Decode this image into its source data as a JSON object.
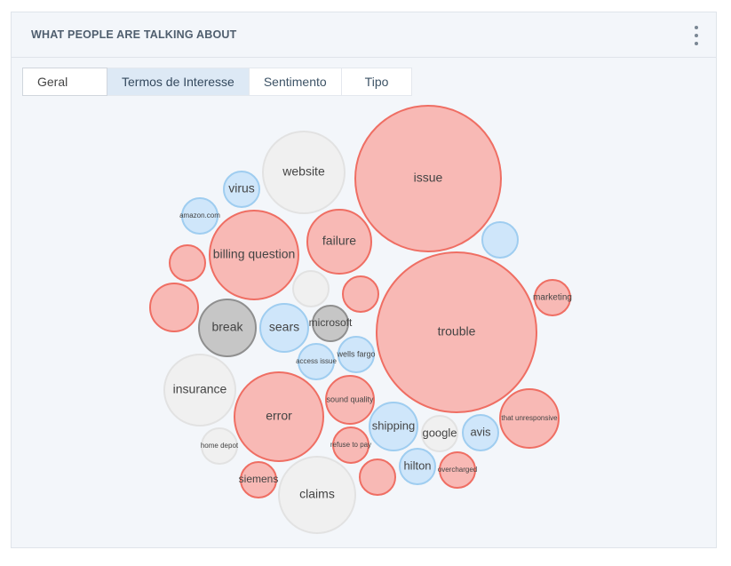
{
  "panel": {
    "title": "WHAT PEOPLE ARE TALKING ABOUT",
    "menu_icon": "vertical-ellipsis-icon"
  },
  "tabs": [
    {
      "label": "Geral",
      "active": false
    },
    {
      "label": "Termos de Interesse",
      "active": true
    },
    {
      "label": "Sentimento",
      "active": false
    },
    {
      "label": "Tipo",
      "active": false
    }
  ],
  "colors": {
    "red_fill": "#f8b9b5",
    "red_stroke": "#ef6e63",
    "blue_fill": "#cfe6fa",
    "blue_stroke": "#9fcdf0",
    "gray_fill": "#f0f0f0",
    "gray_stroke": "#e2e2e2",
    "dark_fill": "#c6c6c6",
    "dark_stroke": "#8f8f8f"
  },
  "bubbles": [
    {
      "label": "issue",
      "group": "red"
    },
    {
      "label": "trouble",
      "group": "red"
    },
    {
      "label": "website",
      "group": "gray"
    },
    {
      "label": "virus",
      "group": "blue"
    },
    {
      "label": "amazon.com",
      "group": "blue"
    },
    {
      "label": "billing question",
      "group": "red"
    },
    {
      "label": "failure",
      "group": "red"
    },
    {
      "label": "",
      "group": "blue"
    },
    {
      "label": "",
      "group": "red"
    },
    {
      "label": "",
      "group": "gray"
    },
    {
      "label": "",
      "group": "red"
    },
    {
      "label": "marketing",
      "group": "red"
    },
    {
      "label": "",
      "group": "red"
    },
    {
      "label": "break",
      "group": "dark"
    },
    {
      "label": "sears",
      "group": "blue"
    },
    {
      "label": "microsoft",
      "group": "dark"
    },
    {
      "label": "wells fargo",
      "group": "blue"
    },
    {
      "label": "access issue",
      "group": "blue"
    },
    {
      "label": "insurance",
      "group": "gray"
    },
    {
      "label": "error",
      "group": "red"
    },
    {
      "label": "sound quality",
      "group": "red"
    },
    {
      "label": "shipping",
      "group": "blue"
    },
    {
      "label": "google",
      "group": "gray"
    },
    {
      "label": "avis",
      "group": "blue"
    },
    {
      "label": "that unresponsive",
      "group": "red"
    },
    {
      "label": "home depot",
      "group": "gray"
    },
    {
      "label": "refuse to pay",
      "group": "red"
    },
    {
      "label": "hilton",
      "group": "blue"
    },
    {
      "label": "overcharged",
      "group": "red"
    },
    {
      "label": "siemens",
      "group": "red"
    },
    {
      "label": "claims",
      "group": "gray"
    },
    {
      "label": "",
      "group": "red"
    }
  ]
}
